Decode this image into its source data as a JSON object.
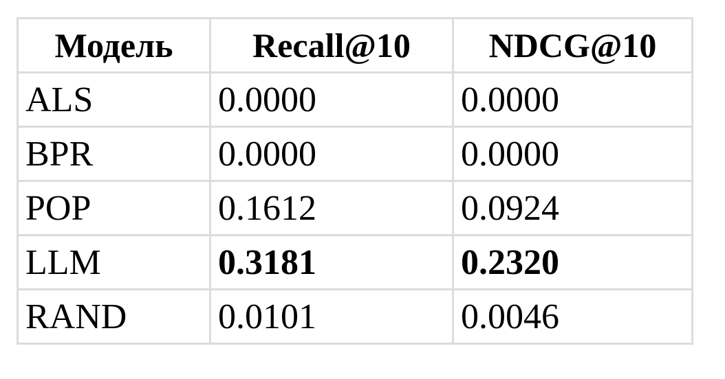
{
  "table": {
    "headers": [
      "Модель",
      "Recall@10",
      "NDCG@10"
    ],
    "rows": [
      {
        "model": "ALS",
        "recall": "0.0000",
        "ndcg": "0.0000",
        "bold": false
      },
      {
        "model": "BPR",
        "recall": "0.0000",
        "ndcg": "0.0000",
        "bold": false
      },
      {
        "model": "POP",
        "recall": "0.1612",
        "ndcg": "0.0924",
        "bold": false
      },
      {
        "model": "LLM",
        "recall": "0.3181",
        "ndcg": "0.2320",
        "bold": true
      },
      {
        "model": "RAND",
        "recall": "0.0101",
        "ndcg": "0.0046",
        "bold": false
      }
    ]
  }
}
